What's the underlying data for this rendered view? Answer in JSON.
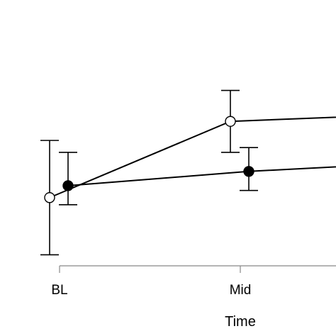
{
  "chart_data": {
    "type": "line",
    "title": "",
    "xlabel": "Time",
    "ylabel": "",
    "categories": [
      "BL",
      "Mid",
      ""
    ],
    "ylim": [
      0,
      100
    ],
    "series": [
      {
        "marker": "open-circle",
        "color": "#000000",
        "points": [
          {
            "x": "BL",
            "y": 34,
            "lower": 10,
            "upper": 58
          },
          {
            "x": "Mid",
            "y": 66,
            "lower": 53,
            "upper": 79
          },
          {
            "x": "",
            "y": 69
          }
        ]
      },
      {
        "marker": "filled-circle",
        "color": "#000000",
        "points": [
          {
            "x": "BL",
            "y": 39,
            "lower": 31,
            "upper": 53
          },
          {
            "x": "Mid",
            "y": 45,
            "lower": 37,
            "upper": 55
          },
          {
            "x": "",
            "y": 49
          }
        ]
      }
    ]
  }
}
